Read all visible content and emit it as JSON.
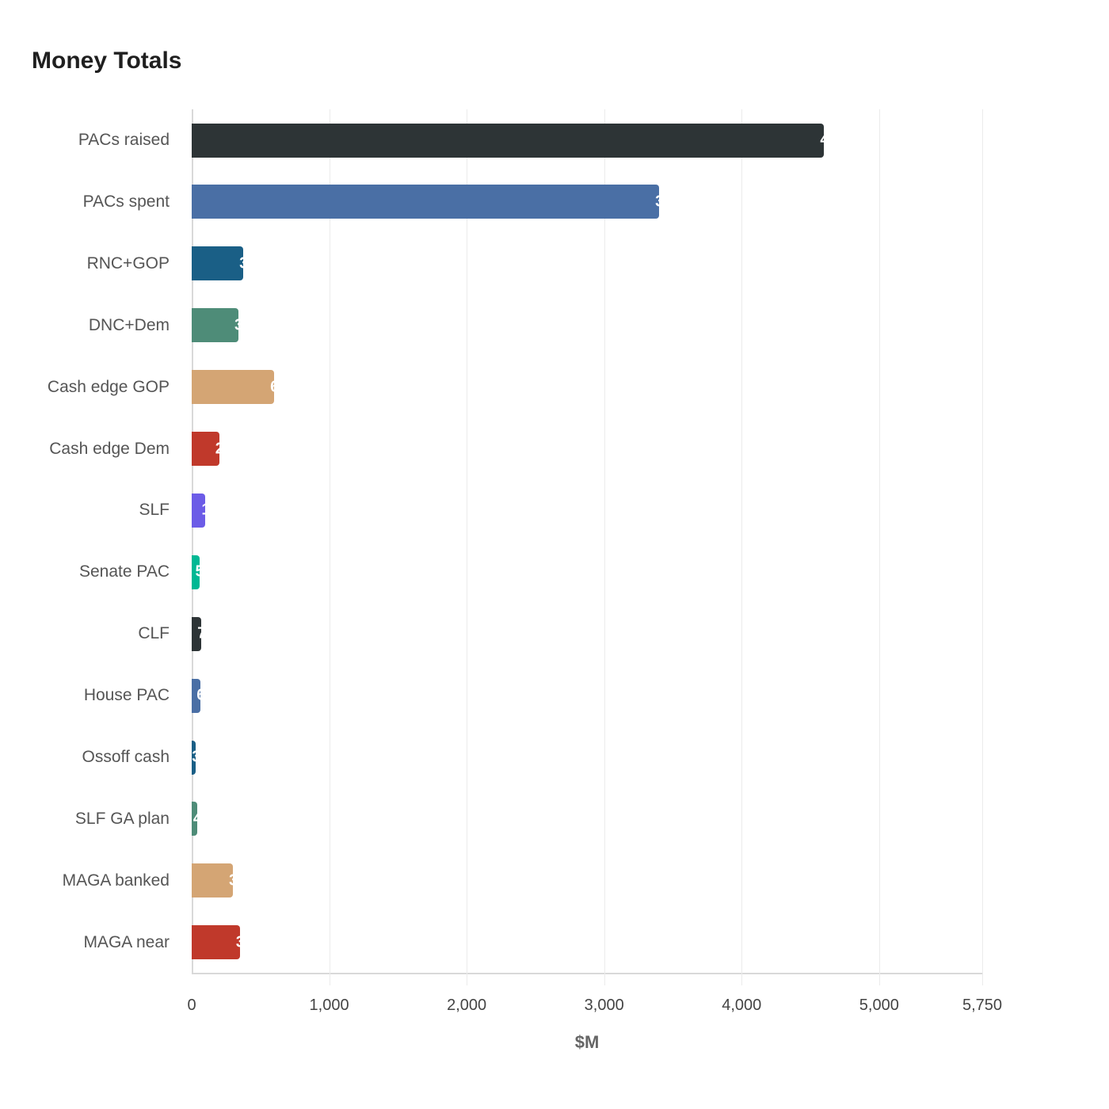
{
  "title": "Money Totals",
  "chart_data": {
    "type": "bar",
    "orientation": "horizontal",
    "title": "Money Totals",
    "xlabel": "$M",
    "ylabel": "",
    "xlim": [
      0,
      5750
    ],
    "x_ticks": [
      0,
      1000,
      2000,
      3000,
      4000,
      5000,
      5750
    ],
    "x_tick_labels": [
      "0",
      "1,000",
      "2,000",
      "3,000",
      "4,000",
      "5,000",
      "5,750"
    ],
    "grid": true,
    "categories": [
      "PACs raised",
      "PACs spent",
      "RNC+GOP",
      "DNC+Dem",
      "Cash edge GOP",
      "Cash edge Dem",
      "SLF",
      "Senate PAC",
      "CLF",
      "House PAC",
      "Ossoff cash",
      "SLF GA plan",
      "MAGA banked",
      "MAGA near"
    ],
    "values": [
      4600,
      3400,
      375,
      340,
      600,
      200,
      100,
      55,
      70,
      65,
      30,
      40,
      300,
      350
    ],
    "colors": [
      "#2d3436",
      "#4a6fa5",
      "#1a5f86",
      "#4e8c78",
      "#d4a574",
      "#c0392b",
      "#6c5ce7",
      "#00b894",
      "#2d3436",
      "#4a6fa5",
      "#1a5f86",
      "#4e8c78",
      "#d4a574",
      "#c0392b"
    ]
  }
}
